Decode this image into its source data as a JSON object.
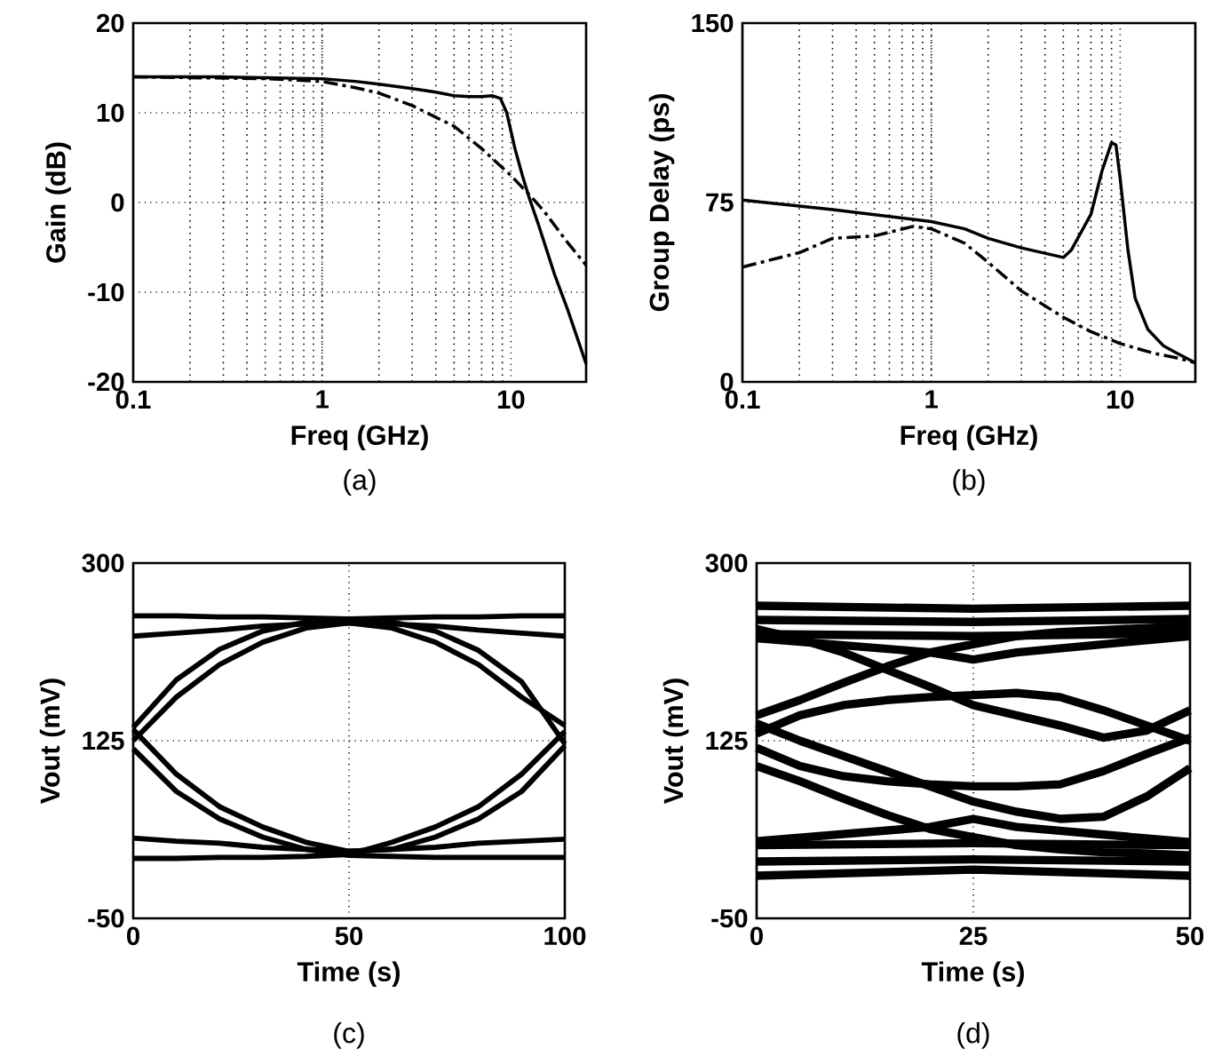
{
  "chart_data": [
    {
      "type": "line",
      "xlabel": "Freq (GHz)",
      "ylabel": "Gain (dB)",
      "log": "x",
      "grid": true,
      "xlim": [
        0.1,
        25
      ],
      "ylim": [
        -20,
        20
      ],
      "xticks": [
        0.1,
        1,
        10
      ],
      "yticks": [
        -20,
        -10,
        0,
        10,
        20
      ],
      "annotations": [
        "(a)"
      ],
      "series": [
        {
          "color": "#000000",
          "line_style": "solid",
          "x": [
            0.1,
            0.3,
            0.5,
            1,
            1.5,
            2,
            3,
            4,
            5,
            6,
            7,
            8,
            8.8,
            9.5,
            10.5,
            11.5,
            12.5,
            14,
            17,
            20,
            25
          ],
          "values": [
            14,
            14,
            13.9,
            13.8,
            13.5,
            13.2,
            12.7,
            12.3,
            11.9,
            11.8,
            11.8,
            11.9,
            11.6,
            10,
            6,
            3,
            0.5,
            -2.5,
            -8,
            -12,
            -18
          ]
        },
        {
          "color": "#000000",
          "line_style": "dashed",
          "x": [
            0.1,
            0.5,
            1,
            1.5,
            2,
            3,
            5,
            7,
            10,
            13,
            15,
            20,
            25
          ],
          "values": [
            14,
            13.8,
            13.5,
            12.8,
            12.2,
            10.8,
            8.5,
            6,
            3,
            0.5,
            -1,
            -4.5,
            -7
          ]
        }
      ]
    },
    {
      "type": "line",
      "xlabel": "Freq (GHz)",
      "ylabel": "Group Delay (ps)",
      "log": "x",
      "grid": true,
      "xlim": [
        0.1,
        25
      ],
      "ylim": [
        0,
        150
      ],
      "xticks": [
        0.1,
        1,
        10
      ],
      "yticks": [
        0,
        75,
        150
      ],
      "annotations": [
        "(b)"
      ],
      "series": [
        {
          "color": "#000000",
          "line_style": "solid",
          "x": [
            0.1,
            0.3,
            1,
            1.5,
            2,
            3,
            5,
            5.5,
            7,
            8,
            9,
            9.5,
            10,
            11,
            12,
            14,
            17,
            20,
            25
          ],
          "values": [
            76,
            72,
            67,
            64,
            60,
            56,
            52,
            55,
            70,
            88,
            100,
            99,
            85,
            55,
            35,
            22,
            15,
            12,
            8
          ]
        },
        {
          "color": "#000000",
          "line_style": "dashed",
          "x": [
            0.1,
            0.2,
            0.3,
            0.5,
            0.8,
            1,
            1.5,
            2,
            3,
            5,
            7,
            10,
            15,
            20,
            25
          ],
          "values": [
            48,
            54,
            60,
            61,
            65,
            64,
            58,
            50,
            38,
            27,
            21,
            16,
            12,
            10,
            8
          ]
        }
      ]
    },
    {
      "type": "line",
      "xlabel": "Time (s)",
      "ylabel": "Vout (mV)",
      "grid": true,
      "xlim": [
        0,
        100
      ],
      "ylim": [
        -50,
        300
      ],
      "xticks": [
        0,
        50,
        100
      ],
      "yticks": [
        -50,
        125,
        300
      ],
      "annotations": [
        "(c)"
      ],
      "series": [
        {
          "color": "#000000",
          "x": [
            0,
            10,
            20,
            30,
            40,
            50,
            60,
            70,
            80,
            90,
            100
          ],
          "values": [
            138,
            185,
            215,
            233,
            242,
            245,
            246,
            247,
            247,
            248,
            248
          ]
        },
        {
          "color": "#000000",
          "x": [
            0,
            10,
            20,
            30,
            40,
            50,
            60,
            70,
            80,
            90,
            100
          ],
          "values": [
            248,
            248,
            247,
            247,
            246,
            245,
            242,
            233,
            214,
            183,
            122
          ]
        },
        {
          "color": "#000000",
          "x": [
            0,
            10,
            20,
            30,
            40,
            50,
            60,
            70,
            80,
            90,
            100
          ],
          "values": [
            125,
            168,
            200,
            222,
            236,
            241,
            240,
            238,
            234,
            231,
            228
          ]
        },
        {
          "color": "#000000",
          "x": [
            0,
            10,
            20,
            30,
            40,
            50,
            60,
            70,
            80,
            90,
            100
          ],
          "values": [
            228,
            231,
            234,
            238,
            240,
            241,
            236,
            222,
            200,
            168,
            140
          ]
        },
        {
          "color": "#000000",
          "x": [
            0,
            10,
            20,
            30,
            40,
            50,
            60,
            70,
            80,
            90,
            100
          ],
          "values": [
            117,
            75,
            48,
            30,
            18,
            12,
            11,
            10,
            10,
            10,
            10
          ]
        },
        {
          "color": "#000000",
          "x": [
            0,
            10,
            20,
            30,
            40,
            50,
            60,
            70,
            80,
            90,
            100
          ],
          "values": [
            9,
            9,
            10,
            10,
            11,
            13,
            25,
            40,
            60,
            92,
            134
          ]
        },
        {
          "color": "#000000",
          "x": [
            0,
            10,
            20,
            30,
            40,
            50,
            60,
            70,
            80,
            90,
            100
          ],
          "values": [
            136,
            92,
            60,
            40,
            25,
            16,
            18,
            20,
            24,
            26,
            28
          ]
        },
        {
          "color": "#000000",
          "x": [
            0,
            10,
            20,
            30,
            40,
            50,
            60,
            70,
            80,
            90,
            100
          ],
          "values": [
            29,
            26,
            24,
            20,
            18,
            16,
            18,
            30,
            48,
            75,
            120
          ]
        }
      ]
    },
    {
      "type": "line",
      "xlabel": "Time (s)",
      "ylabel": "Vout (mV)",
      "grid": true,
      "xlim": [
        0,
        50
      ],
      "ylim": [
        -50,
        300
      ],
      "xticks": [
        0,
        25,
        50
      ],
      "yticks": [
        -50,
        125,
        300
      ],
      "annotations": [
        "(d)"
      ],
      "series": [
        {
          "color": "#000000",
          "x": [
            0,
            25,
            50
          ],
          "values": [
            258,
            255,
            258
          ]
        },
        {
          "color": "#000000",
          "x": [
            0,
            25,
            50
          ],
          "values": [
            244,
            242,
            245
          ]
        },
        {
          "color": "#000000",
          "x": [
            0,
            25,
            50
          ],
          "values": [
            230,
            228,
            231
          ]
        },
        {
          "color": "#000000",
          "x": [
            0,
            20,
            25,
            30,
            50
          ],
          "values": [
            226,
            212,
            205,
            212,
            228
          ]
        },
        {
          "color": "#000000",
          "x": [
            0,
            5,
            10,
            15,
            20,
            25,
            30,
            35,
            40,
            45,
            50
          ],
          "values": [
            150,
            165,
            182,
            198,
            212,
            220,
            228,
            232,
            234,
            236,
            238
          ]
        },
        {
          "color": "#000000",
          "x": [
            0,
            5,
            10,
            15,
            20,
            25,
            30,
            35,
            40,
            45,
            50
          ],
          "values": [
            132,
            150,
            160,
            165,
            168,
            170,
            172,
            168,
            155,
            140,
            125
          ]
        },
        {
          "color": "#000000",
          "x": [
            0,
            5,
            10,
            15,
            20,
            25,
            30,
            35,
            40,
            45,
            50
          ],
          "values": [
            118,
            100,
            90,
            85,
            82,
            80,
            80,
            82,
            95,
            112,
            128
          ]
        },
        {
          "color": "#000000",
          "x": [
            0,
            5,
            10,
            15,
            20,
            25,
            30,
            35,
            40,
            45,
            50
          ],
          "values": [
            100,
            85,
            68,
            52,
            38,
            30,
            22,
            18,
            15,
            14,
            12
          ]
        },
        {
          "color": "#000000",
          "x": [
            0,
            5,
            10,
            15,
            20,
            25,
            30,
            35,
            40,
            45,
            50
          ],
          "values": [
            142,
            125,
            110,
            95,
            80,
            65,
            55,
            48,
            50,
            70,
            98
          ]
        },
        {
          "color": "#000000",
          "x": [
            0,
            5,
            10,
            15,
            20,
            25,
            30,
            35,
            40,
            45,
            50
          ],
          "values": [
            235,
            225,
            212,
            195,
            178,
            160,
            150,
            140,
            128,
            135,
            155
          ]
        },
        {
          "color": "#000000",
          "x": [
            0,
            25,
            50
          ],
          "values": [
            22,
            24,
            22
          ]
        },
        {
          "color": "#000000",
          "x": [
            0,
            25,
            50
          ],
          "values": [
            6,
            8,
            6
          ]
        },
        {
          "color": "#000000",
          "x": [
            0,
            25,
            50
          ],
          "values": [
            -8,
            -2,
            -8
          ]
        },
        {
          "color": "#000000",
          "x": [
            0,
            20,
            25,
            30,
            50
          ],
          "values": [
            26,
            40,
            48,
            40,
            25
          ]
        }
      ]
    }
  ]
}
